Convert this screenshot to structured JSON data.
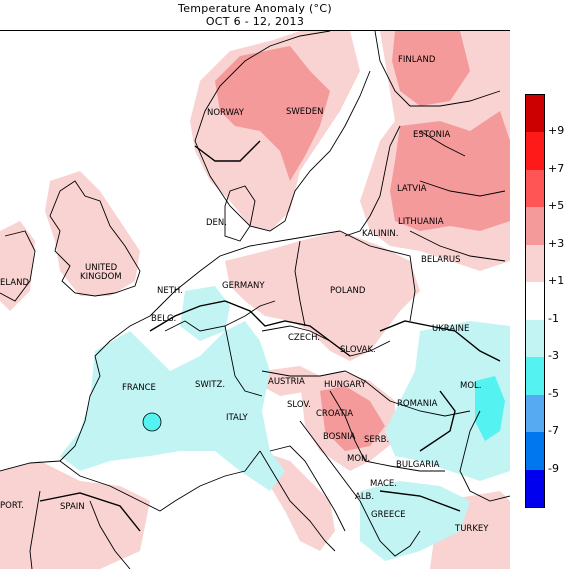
{
  "title": {
    "line1": "Temperature Anomaly (°C)",
    "line2": "OCT 6 - 12, 2013"
  },
  "legend": {
    "bins": [
      {
        "color": "#cc0000"
      },
      {
        "color": "#ff1a1a"
      },
      {
        "color": "#ff5555"
      },
      {
        "color": "#f59a9a"
      },
      {
        "color": "#f9d2d2"
      },
      {
        "color": "#ffffff"
      },
      {
        "color": "#c2f4f4"
      },
      {
        "color": "#55f2f2"
      },
      {
        "color": "#55aaf2"
      },
      {
        "color": "#0077ee"
      },
      {
        "color": "#0000ee"
      }
    ],
    "ticks": [
      "+9",
      "+7",
      "+5",
      "+3",
      "+1",
      "-1",
      "-3",
      "-5",
      "-7",
      "-9"
    ]
  },
  "countries": [
    {
      "name": "FINLAND"
    },
    {
      "name": "NORWAY"
    },
    {
      "name": "SWEDEN"
    },
    {
      "name": "ESTONIA"
    },
    {
      "name": "LATVIA"
    },
    {
      "name": "LITHUANIA"
    },
    {
      "name": "KALININ."
    },
    {
      "name": "BELARUS"
    },
    {
      "name": "DEN."
    },
    {
      "name": "UNITED"
    },
    {
      "name": "KINGDOM"
    },
    {
      "name": "ELAND"
    },
    {
      "name": "NETH."
    },
    {
      "name": "GERMANY"
    },
    {
      "name": "POLAND"
    },
    {
      "name": "BELG."
    },
    {
      "name": "CZECH."
    },
    {
      "name": "UKRAINE"
    },
    {
      "name": "SLOVAK."
    },
    {
      "name": "FRANCE"
    },
    {
      "name": "SWITZ."
    },
    {
      "name": "AUSTRIA"
    },
    {
      "name": "HUNGARY"
    },
    {
      "name": "MOL."
    },
    {
      "name": "SLOV."
    },
    {
      "name": "ROMANIA"
    },
    {
      "name": "CROATIA"
    },
    {
      "name": "ITALY"
    },
    {
      "name": "BOSNIA"
    },
    {
      "name": "SERB."
    },
    {
      "name": "MON."
    },
    {
      "name": "BULGARIA"
    },
    {
      "name": "MACE."
    },
    {
      "name": "ALB."
    },
    {
      "name": "PORT."
    },
    {
      "name": "SPAIN"
    },
    {
      "name": "GREECE"
    },
    {
      "name": "TURKEY"
    }
  ]
}
